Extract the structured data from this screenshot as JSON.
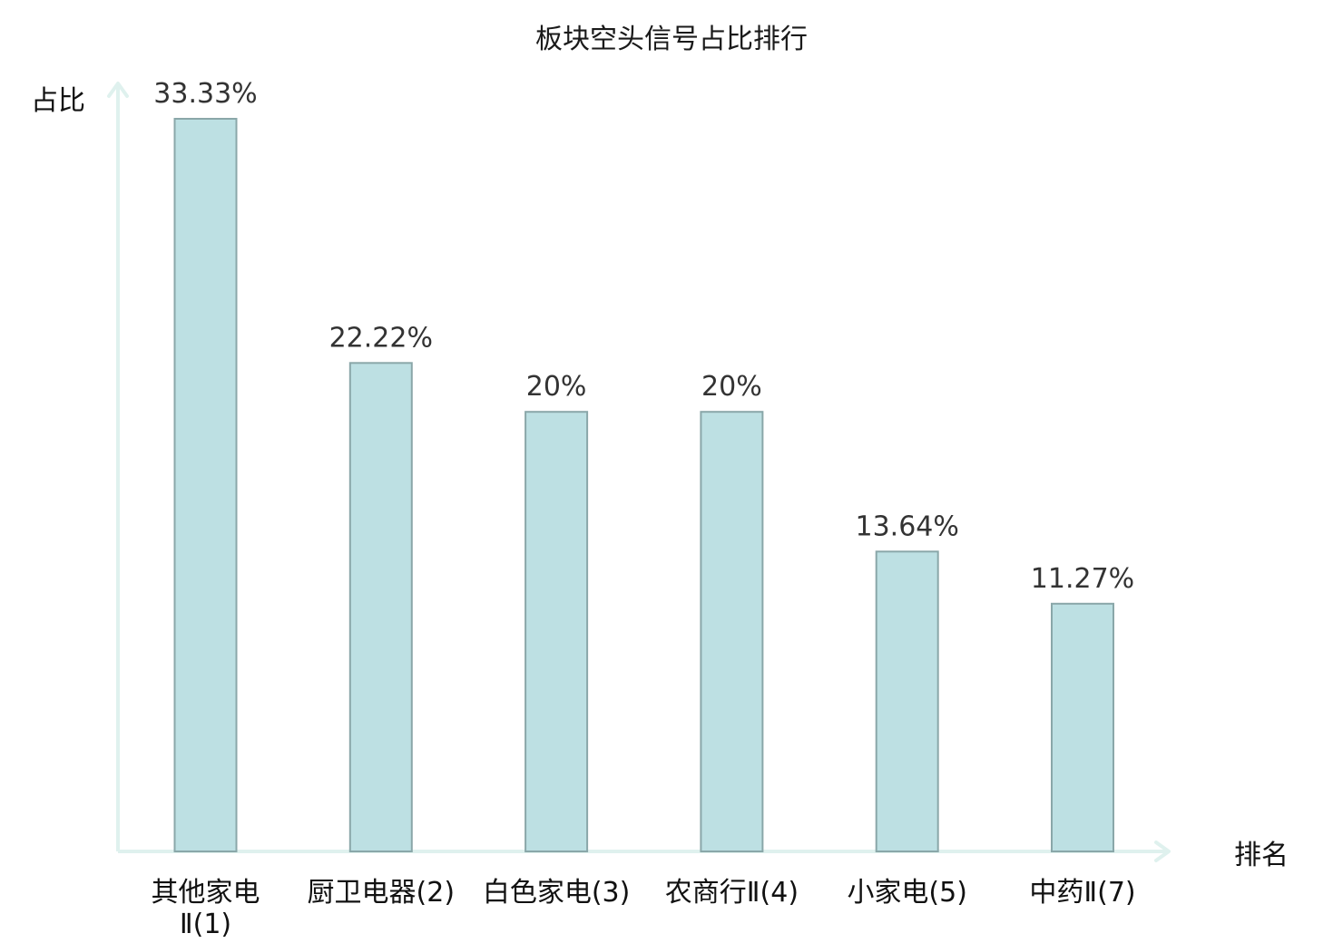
{
  "chart_data": {
    "type": "bar",
    "title": "板块空头信号占比排行",
    "xlabel": "排名",
    "ylabel": "占比",
    "ylim": [
      0,
      33.33
    ],
    "grid": false,
    "categories": [
      "其他家电Ⅱ(1)",
      "厨卫电器(2)",
      "白色家电(3)",
      "农商行Ⅱ(4)",
      "小家电(5)",
      "中药Ⅱ(7)"
    ],
    "category_lines": [
      [
        "其他家电",
        "Ⅱ(1)"
      ],
      [
        "厨卫电器(2)"
      ],
      [
        "白色家电(3)"
      ],
      [
        "农商行Ⅱ(4)"
      ],
      [
        "小家电(5)"
      ],
      [
        "中药Ⅱ(7)"
      ]
    ],
    "values": [
      33.33,
      22.22,
      20,
      20,
      13.64,
      11.27
    ],
    "value_labels": [
      "33.33%",
      "22.22%",
      "20%",
      "20%",
      "13.64%",
      "11.27%"
    ],
    "highlight_index": 5
  },
  "colors": {
    "bar_fill": "#bde0e3",
    "bar_stroke": "#8aa7a9",
    "axis": "#dff1ee",
    "highlight_text": "#e01010",
    "label_text": "#111111",
    "value_text": "#333333"
  }
}
